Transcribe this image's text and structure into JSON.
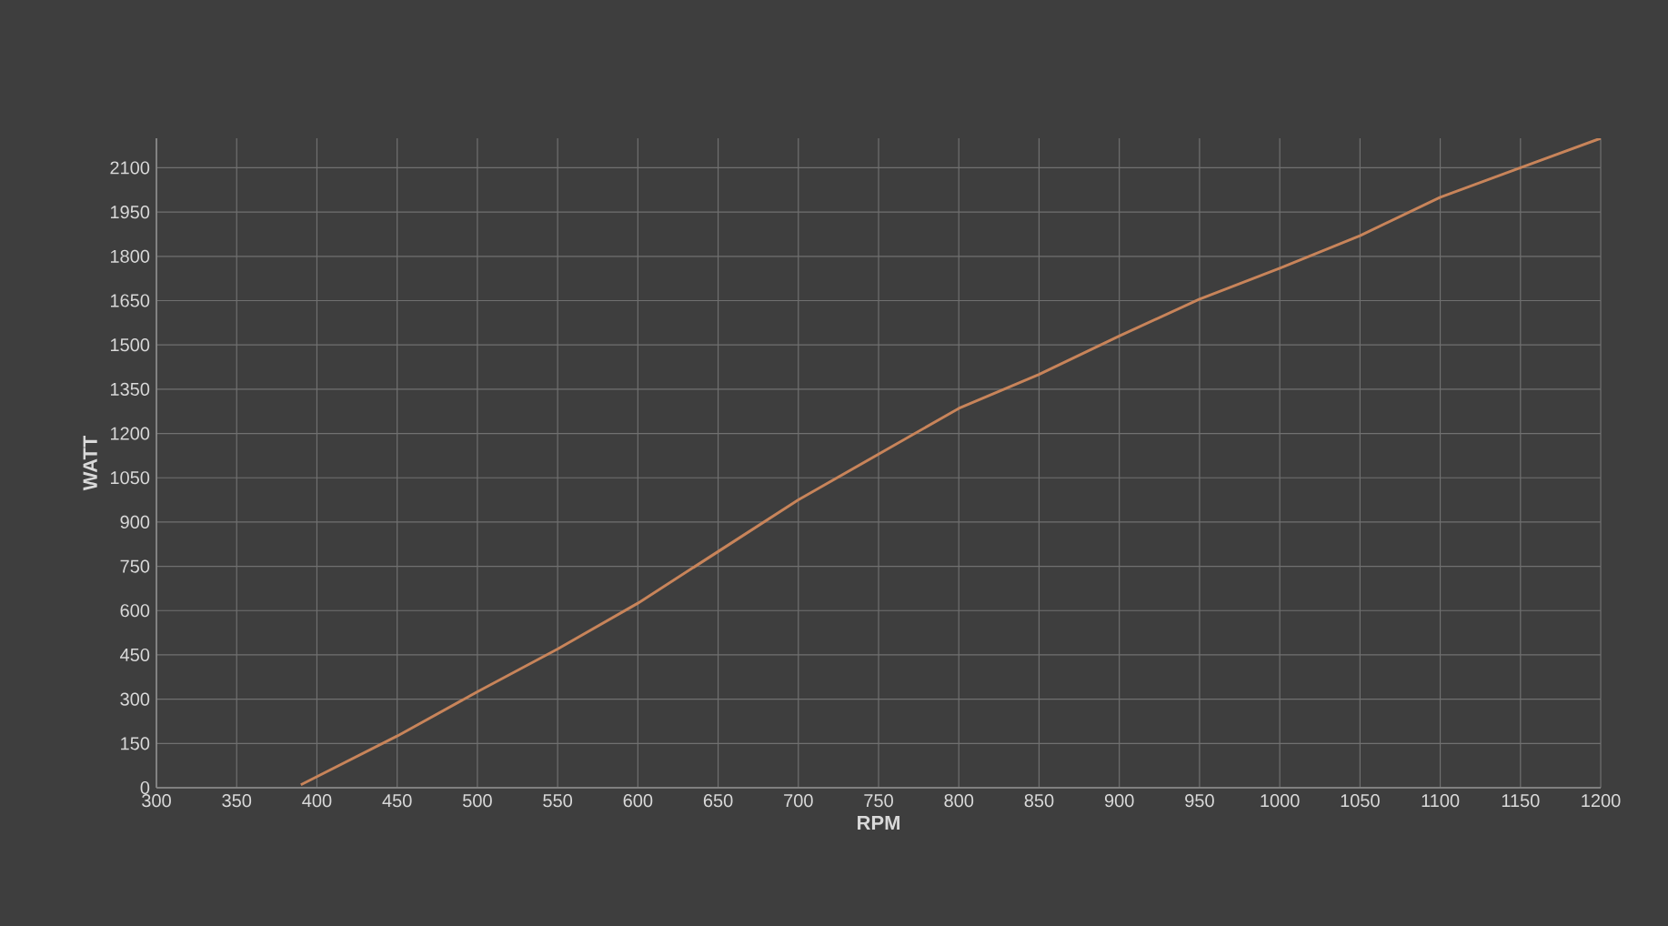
{
  "chart_data": {
    "type": "line",
    "xlabel": "RPM",
    "ylabel": "WATT",
    "x": [
      390,
      450,
      500,
      550,
      600,
      650,
      700,
      750,
      800,
      850,
      900,
      950,
      1000,
      1050,
      1100,
      1150,
      1200
    ],
    "series": [
      {
        "color": "#c8845a",
        "values": [
          10,
          175,
          325,
          470,
          625,
          800,
          975,
          1130,
          1285,
          1400,
          1530,
          1655,
          1760,
          1870,
          2000,
          2100,
          2200
        ]
      }
    ],
    "xlim": [
      300,
      1200
    ],
    "ylim": [
      0,
      2200
    ],
    "xticks": [
      300,
      350,
      400,
      450,
      500,
      550,
      600,
      650,
      700,
      750,
      800,
      850,
      900,
      950,
      1000,
      1050,
      1100,
      1150,
      1200
    ],
    "yticks": [
      0,
      150,
      300,
      450,
      600,
      750,
      900,
      1050,
      1200,
      1350,
      1500,
      1650,
      1800,
      1950,
      2100
    ],
    "grid": true,
    "marker": "none",
    "line_style": "solid"
  }
}
